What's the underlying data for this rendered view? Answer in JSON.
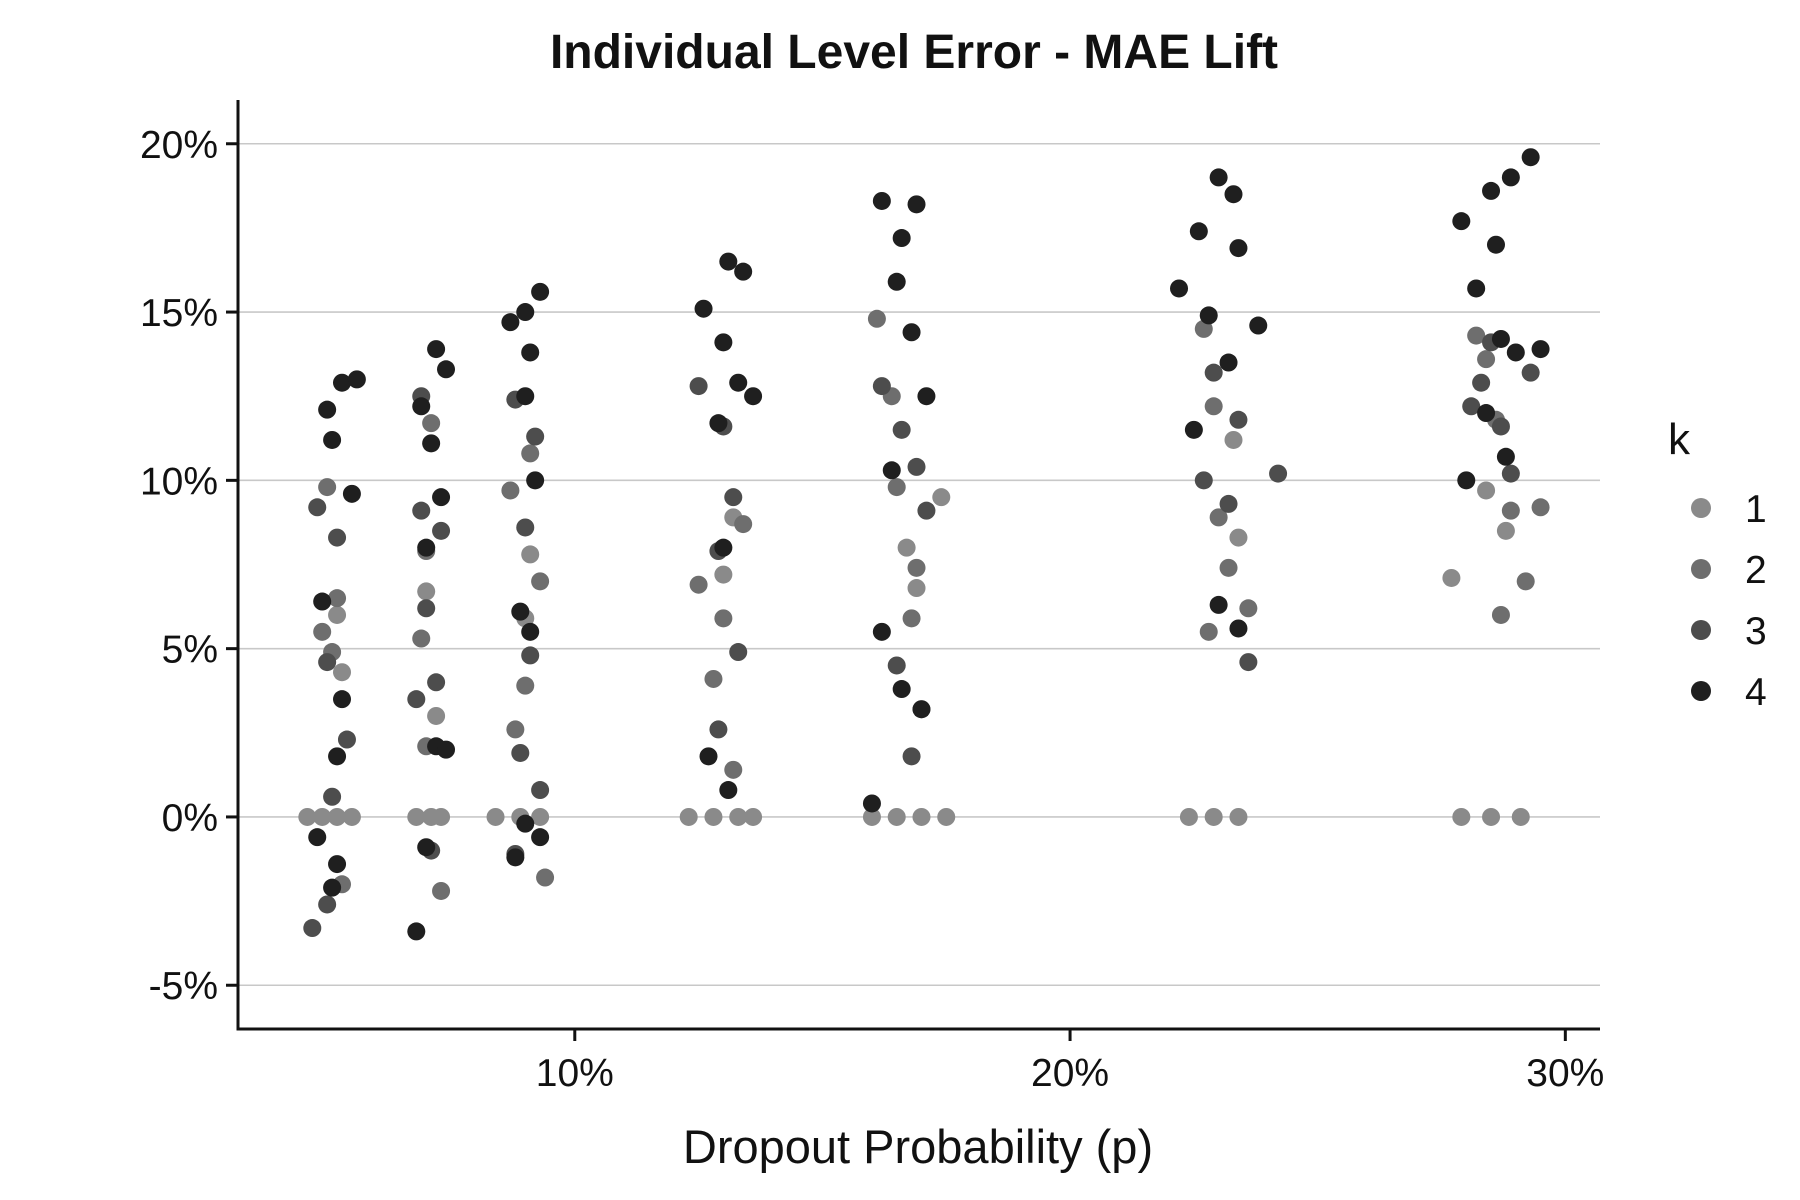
{
  "chart_data": {
    "type": "scatter",
    "title": "Individual Level Error - MAE Lift",
    "xlabel": "Dropout Probability (p)",
    "ylabel": "",
    "x_ticks": [
      {
        "value": 10,
        "label": "10%"
      },
      {
        "value": 20,
        "label": "20%"
      },
      {
        "value": 30,
        "label": "30%"
      }
    ],
    "y_ticks": [
      {
        "value": -5,
        "label": "-5%"
      },
      {
        "value": 0,
        "label": "0%"
      },
      {
        "value": 5,
        "label": "5%"
      },
      {
        "value": 10,
        "label": "10%"
      },
      {
        "value": 15,
        "label": "15%"
      },
      {
        "value": 20,
        "label": "20%"
      }
    ],
    "xlim": [
      3.2,
      30.7
    ],
    "ylim": [
      -6.3,
      21.3
    ],
    "grid": "horizontal major",
    "legend": {
      "title": "k",
      "position": "right",
      "entries": [
        "1",
        "2",
        "3",
        "4"
      ]
    },
    "colors": {
      "1": "#8a8a8a",
      "2": "#6e6e6e",
      "3": "#4d4d4d",
      "4": "#1f1f1f"
    },
    "series": [
      {
        "name": "1",
        "points": [
          [
            4.6,
            0
          ],
          [
            4.9,
            0
          ],
          [
            5.2,
            0
          ],
          [
            5.5,
            0
          ],
          [
            6.8,
            0
          ],
          [
            7.1,
            0
          ],
          [
            7.3,
            0
          ],
          [
            8.4,
            0
          ],
          [
            8.9,
            0
          ],
          [
            9.3,
            0
          ],
          [
            12.3,
            0
          ],
          [
            12.8,
            0
          ],
          [
            13.3,
            0
          ],
          [
            13.6,
            0
          ],
          [
            16.0,
            0
          ],
          [
            16.5,
            0
          ],
          [
            17.0,
            0
          ],
          [
            17.5,
            0
          ],
          [
            22.4,
            0
          ],
          [
            22.9,
            0
          ],
          [
            23.4,
            0
          ],
          [
            27.9,
            0
          ],
          [
            28.5,
            0
          ],
          [
            29.1,
            0
          ],
          [
            5.2,
            6.0
          ],
          [
            5.3,
            4.3
          ],
          [
            7.0,
            6.7
          ],
          [
            7.2,
            3.0
          ],
          [
            9.1,
            7.8
          ],
          [
            9.0,
            5.9
          ],
          [
            13.0,
            7.2
          ],
          [
            13.2,
            8.9
          ],
          [
            16.7,
            8.0
          ],
          [
            16.9,
            6.8
          ],
          [
            17.4,
            9.5
          ],
          [
            23.3,
            11.2
          ],
          [
            23.4,
            8.3
          ],
          [
            28.4,
            9.7
          ],
          [
            28.8,
            8.5
          ],
          [
            27.7,
            7.1
          ]
        ]
      },
      {
        "name": "2",
        "points": [
          [
            4.9,
            5.5
          ],
          [
            5.1,
            4.9
          ],
          [
            5.2,
            6.5
          ],
          [
            5.3,
            -2.0
          ],
          [
            5.0,
            9.8
          ],
          [
            7.0,
            7.9
          ],
          [
            6.9,
            5.3
          ],
          [
            7.1,
            11.7
          ],
          [
            7.0,
            2.1
          ],
          [
            7.3,
            -2.2
          ],
          [
            8.7,
            9.7
          ],
          [
            9.1,
            10.8
          ],
          [
            9.0,
            3.9
          ],
          [
            9.3,
            7.0
          ],
          [
            9.4,
            -1.8
          ],
          [
            8.8,
            2.6
          ],
          [
            12.5,
            6.9
          ],
          [
            13.0,
            5.9
          ],
          [
            13.4,
            8.7
          ],
          [
            12.8,
            4.1
          ],
          [
            13.2,
            1.4
          ],
          [
            16.1,
            14.8
          ],
          [
            16.5,
            9.8
          ],
          [
            16.8,
            5.9
          ],
          [
            16.9,
            7.4
          ],
          [
            17.0,
            3.2
          ],
          [
            16.4,
            12.5
          ],
          [
            22.7,
            14.5
          ],
          [
            23.0,
            8.9
          ],
          [
            23.2,
            7.4
          ],
          [
            22.8,
            5.5
          ],
          [
            23.6,
            6.2
          ],
          [
            22.9,
            12.2
          ],
          [
            28.2,
            14.3
          ],
          [
            28.6,
            11.8
          ],
          [
            28.9,
            9.1
          ],
          [
            29.2,
            7.0
          ],
          [
            28.7,
            6.0
          ],
          [
            28.4,
            13.6
          ],
          [
            29.5,
            9.2
          ]
        ]
      },
      {
        "name": "3",
        "points": [
          [
            4.8,
            9.2
          ],
          [
            5.2,
            8.3
          ],
          [
            5.0,
            4.6
          ],
          [
            5.4,
            2.3
          ],
          [
            5.0,
            -2.6
          ],
          [
            4.7,
            -3.3
          ],
          [
            5.1,
            0.6
          ],
          [
            6.9,
            9.1
          ],
          [
            7.3,
            8.5
          ],
          [
            7.0,
            6.2
          ],
          [
            7.2,
            4.0
          ],
          [
            6.8,
            3.5
          ],
          [
            7.1,
            -1.0
          ],
          [
            6.9,
            12.5
          ],
          [
            8.8,
            12.4
          ],
          [
            9.2,
            11.3
          ],
          [
            9.0,
            8.6
          ],
          [
            9.1,
            4.8
          ],
          [
            8.9,
            1.9
          ],
          [
            9.3,
            0.8
          ],
          [
            8.8,
            -1.1
          ],
          [
            12.5,
            12.8
          ],
          [
            13.0,
            11.6
          ],
          [
            13.2,
            9.5
          ],
          [
            12.9,
            7.9
          ],
          [
            13.3,
            4.9
          ],
          [
            12.9,
            2.6
          ],
          [
            16.2,
            12.8
          ],
          [
            16.6,
            11.5
          ],
          [
            16.9,
            10.4
          ],
          [
            17.1,
            9.1
          ],
          [
            16.5,
            4.5
          ],
          [
            16.8,
            1.8
          ],
          [
            22.9,
            13.2
          ],
          [
            23.4,
            11.8
          ],
          [
            22.7,
            10.0
          ],
          [
            23.2,
            9.3
          ],
          [
            23.6,
            4.6
          ],
          [
            24.2,
            10.2
          ],
          [
            28.3,
            12.9
          ],
          [
            28.7,
            11.6
          ],
          [
            28.9,
            10.2
          ],
          [
            28.1,
            12.2
          ],
          [
            29.3,
            13.2
          ],
          [
            28.5,
            14.1
          ]
        ]
      },
      {
        "name": "4",
        "points": [
          [
            5.0,
            12.1
          ],
          [
            5.3,
            12.9
          ],
          [
            5.6,
            13.0
          ],
          [
            5.1,
            11.2
          ],
          [
            5.5,
            9.6
          ],
          [
            4.9,
            6.4
          ],
          [
            5.3,
            3.5
          ],
          [
            5.2,
            1.8
          ],
          [
            4.8,
            -0.6
          ],
          [
            5.2,
            -1.4
          ],
          [
            5.1,
            -2.1
          ],
          [
            6.9,
            12.2
          ],
          [
            7.2,
            13.9
          ],
          [
            7.4,
            13.3
          ],
          [
            7.1,
            11.1
          ],
          [
            7.3,
            9.5
          ],
          [
            7.0,
            8.0
          ],
          [
            7.2,
            2.1
          ],
          [
            7.4,
            2.0
          ],
          [
            7.0,
            -0.9
          ],
          [
            6.8,
            -3.4
          ],
          [
            8.7,
            14.7
          ],
          [
            9.0,
            15.0
          ],
          [
            9.3,
            15.6
          ],
          [
            9.1,
            13.8
          ],
          [
            9.0,
            12.5
          ],
          [
            9.2,
            10.0
          ],
          [
            8.9,
            6.1
          ],
          [
            9.1,
            5.5
          ],
          [
            9.0,
            -0.2
          ],
          [
            9.3,
            -0.6
          ],
          [
            8.8,
            -1.2
          ],
          [
            12.6,
            15.1
          ],
          [
            13.1,
            16.5
          ],
          [
            13.4,
            16.2
          ],
          [
            13.0,
            14.1
          ],
          [
            13.3,
            12.9
          ],
          [
            13.6,
            12.5
          ],
          [
            12.9,
            11.7
          ],
          [
            13.0,
            8.0
          ],
          [
            12.7,
            1.8
          ],
          [
            13.1,
            0.8
          ],
          [
            16.2,
            18.3
          ],
          [
            16.9,
            18.2
          ],
          [
            16.6,
            17.2
          ],
          [
            16.5,
            15.9
          ],
          [
            16.8,
            14.4
          ],
          [
            17.1,
            12.5
          ],
          [
            16.4,
            10.3
          ],
          [
            16.2,
            5.5
          ],
          [
            16.6,
            3.8
          ],
          [
            17.0,
            3.2
          ],
          [
            16.0,
            0.4
          ],
          [
            22.2,
            15.7
          ],
          [
            22.6,
            17.4
          ],
          [
            23.0,
            19.0
          ],
          [
            23.3,
            18.5
          ],
          [
            23.4,
            16.9
          ],
          [
            22.8,
            14.9
          ],
          [
            23.2,
            13.5
          ],
          [
            22.5,
            11.5
          ],
          [
            23.0,
            6.3
          ],
          [
            23.4,
            5.6
          ],
          [
            23.8,
            14.6
          ],
          [
            27.9,
            17.7
          ],
          [
            28.5,
            18.6
          ],
          [
            28.9,
            19.0
          ],
          [
            29.3,
            19.6
          ],
          [
            28.6,
            17.0
          ],
          [
            28.2,
            15.7
          ],
          [
            28.7,
            14.2
          ],
          [
            29.0,
            13.8
          ],
          [
            29.5,
            13.9
          ],
          [
            28.4,
            12.0
          ],
          [
            28.8,
            10.7
          ],
          [
            28.0,
            10.0
          ]
        ]
      }
    ]
  }
}
